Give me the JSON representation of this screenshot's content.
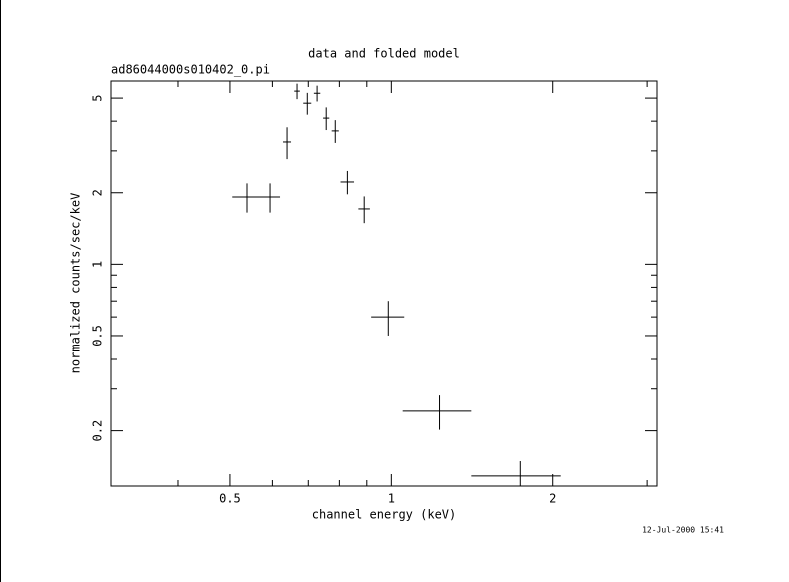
{
  "chart_data": {
    "type": "errorbar",
    "title": "data and folded model",
    "subtitle": "ad86044000s010402_0.pi",
    "x_label": "channel energy (keV)",
    "y_label": "normalized counts/sec/keV",
    "timestamp": "12-Jul-2000 15:41",
    "xscale": "log",
    "yscale": "log",
    "xlim": [
      0.3,
      3.13
    ],
    "ylim": [
      0.117,
      5.9
    ],
    "xticks": [
      0.5,
      1,
      2
    ],
    "yticks": [
      0.2,
      0.5,
      1,
      2,
      5
    ],
    "xminorticks": [
      0.3,
      0.4,
      0.6,
      0.7,
      0.8,
      0.9,
      3
    ],
    "yminorticks": [
      0.3,
      0.4,
      0.6,
      0.7,
      0.8,
      0.9,
      3,
      4
    ],
    "color": "#000000",
    "series": [
      {
        "name": "data",
        "x": [
          0.538,
          0.594,
          0.639,
          0.667,
          0.697,
          0.727,
          0.756,
          0.786,
          0.828,
          0.89,
          0.987,
          1.23,
          1.74
        ],
        "xerr": [
          0.033,
          0.026,
          0.011,
          0.008,
          0.012,
          0.01,
          0.01,
          0.012,
          0.024,
          0.022,
          0.07,
          0.18,
          0.33
        ],
        "values": [
          1.92,
          1.92,
          3.27,
          5.35,
          4.76,
          5.24,
          4.12,
          3.64,
          2.22,
          1.71,
          0.6,
          0.242,
          0.129
        ],
        "yerr": [
          0.27,
          0.27,
          0.5,
          0.4,
          0.5,
          0.4,
          0.45,
          0.4,
          0.25,
          0.22,
          0.1,
          0.04,
          0.02
        ]
      }
    ]
  }
}
